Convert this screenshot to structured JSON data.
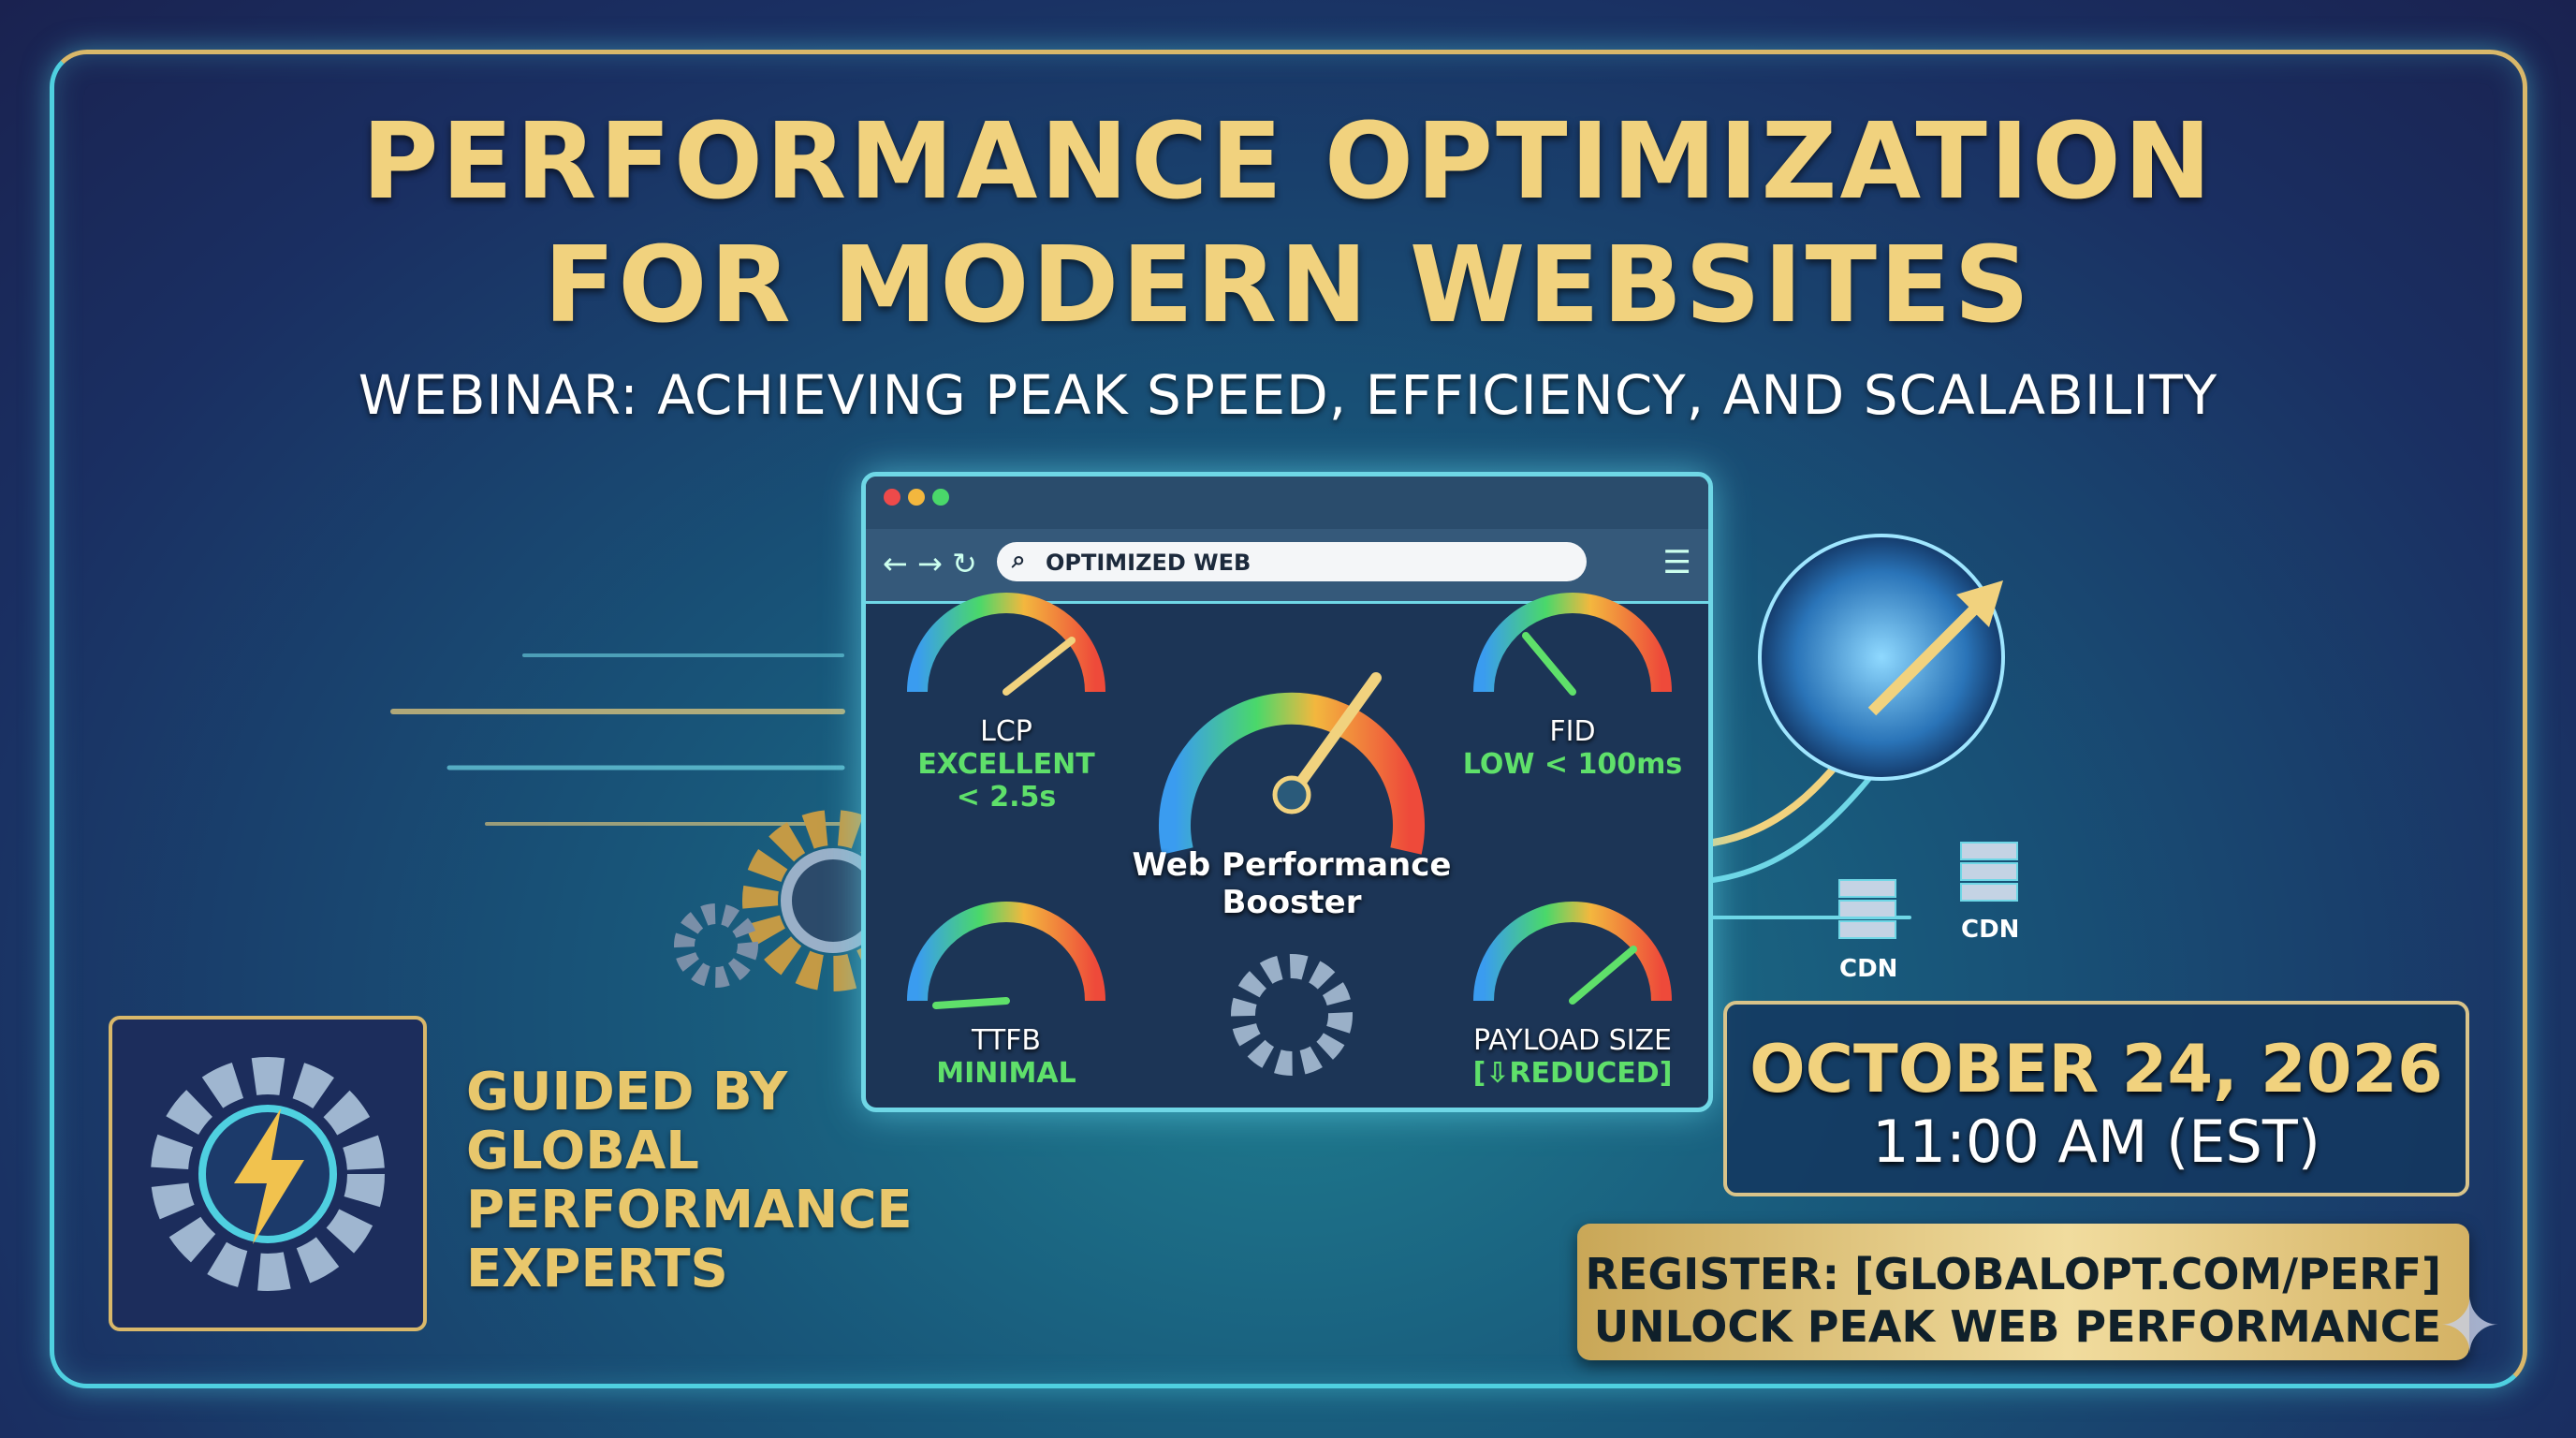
{
  "title": {
    "line1": "PERFORMANCE OPTIMIZATION",
    "line2": "FOR MODERN WEBSITES"
  },
  "subtitle": "WEBINAR: ACHIEVING PEAK SPEED, EFFICIENCY, AND SCALABILITY",
  "browser": {
    "address": "OPTIMIZED WEB",
    "center_label": "Web Performance Booster",
    "gauges": [
      {
        "label": "LCP",
        "value": "EXCELLENT",
        "value2": "< 2.5s"
      },
      {
        "label": "FID",
        "value": "LOW < 100ms"
      },
      {
        "label": "TTFB",
        "value": "MINIMAL"
      },
      {
        "label": "PAYLOAD SIZE",
        "value": "[⇩REDUCED]"
      }
    ]
  },
  "cdn": [
    "CDN",
    "CDN"
  ],
  "host": {
    "lines": [
      "GUIDED BY",
      "GLOBAL",
      "PERFORMANCE",
      "EXPERTS"
    ]
  },
  "event": {
    "date": "OCTOBER 24, 2026",
    "time": "11:00 AM (EST)"
  },
  "register": {
    "line1": "REGISTER: [GLOBALOPT.COM/PERF]",
    "line2": "UNLOCK PEAK WEB PERFORMANCE"
  },
  "colors": {
    "gold": "#f1d27e",
    "cyan": "#4fd0e0",
    "green": "#5fe06a",
    "navy": "#1a2250"
  },
  "icons": [
    "gear-lightning-logo",
    "globe-icon",
    "gear-icon",
    "server-icon",
    "speedometer-icon"
  ]
}
